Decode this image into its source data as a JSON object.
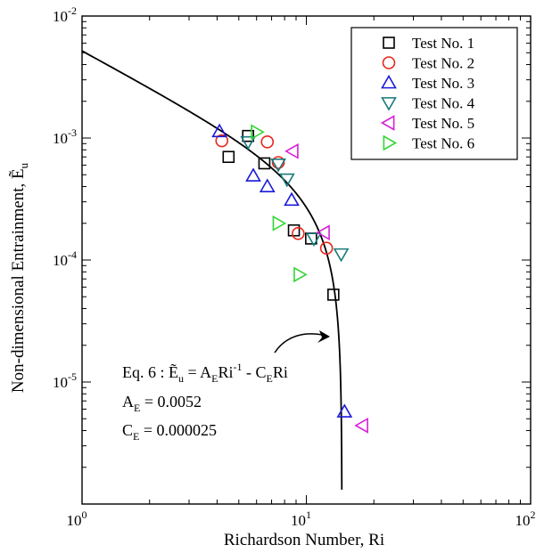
{
  "chart_data": {
    "type": "scatter",
    "xscale": "log",
    "yscale": "log",
    "xlim": [
      1,
      100
    ],
    "ylim": [
      1e-06,
      0.01
    ],
    "xlabel": "Richardson Number, Ri",
    "ylabel": "Non-dimensional Entrainment, Ẽu",
    "x_ticks": [
      {
        "value": 1,
        "base": "10",
        "exp": "0"
      },
      {
        "value": 10,
        "base": "10",
        "exp": "1"
      },
      {
        "value": 100,
        "base": "10",
        "exp": "2"
      }
    ],
    "y_ticks": [
      {
        "value": 1e-05,
        "base": "10",
        "exp": "-5"
      },
      {
        "value": 0.0001,
        "base": "10",
        "exp": "-4"
      },
      {
        "value": 0.001,
        "base": "10",
        "exp": "-3"
      },
      {
        "value": 0.01,
        "base": "10",
        "exp": "-2"
      }
    ],
    "grid": false,
    "legend_position": "top-right",
    "series": [
      {
        "name": "Test No. 1",
        "marker": "square",
        "color": "#000000",
        "points": [
          [
            5.5,
            0.00104
          ],
          [
            4.5,
            0.0007
          ],
          [
            6.5,
            0.00062
          ],
          [
            8.8,
            0.000175
          ],
          [
            10.5,
            0.00015
          ],
          [
            13.2,
            5.2e-05
          ]
        ]
      },
      {
        "name": "Test No. 2",
        "marker": "circle",
        "color": "#e8261c",
        "points": [
          [
            4.2,
            0.00095
          ],
          [
            6.7,
            0.00093
          ],
          [
            7.5,
            0.00063
          ],
          [
            9.2,
            0.000165
          ],
          [
            12.3,
            0.000125
          ]
        ]
      },
      {
        "name": "Test No. 3",
        "marker": "triangle-up",
        "color": "#1a1adb",
        "points": [
          [
            4.1,
            0.00113
          ],
          [
            5.8,
            0.00049
          ],
          [
            6.7,
            0.0004
          ],
          [
            8.6,
            0.00031
          ],
          [
            14.8,
            5.7e-06
          ]
        ]
      },
      {
        "name": "Test No. 4",
        "marker": "triangle-down",
        "color": "#1a7a7a",
        "points": [
          [
            5.5,
            0.00093
          ],
          [
            7.5,
            0.00061
          ],
          [
            8.2,
            0.00046
          ],
          [
            10.8,
            0.00015
          ],
          [
            14.3,
            0.000112
          ]
        ]
      },
      {
        "name": "Test No. 5",
        "marker": "triangle-left",
        "color": "#d81fd8",
        "points": [
          [
            8.7,
            0.00078
          ],
          [
            12.0,
            0.000168
          ],
          [
            17.8,
            4.4e-06
          ]
        ]
      },
      {
        "name": "Test No. 6",
        "marker": "triangle-right",
        "color": "#33d633",
        "points": [
          [
            6.0,
            0.00112
          ],
          [
            7.5,
            0.0002
          ],
          [
            9.3,
            7.6e-05
          ]
        ]
      }
    ],
    "curve": {
      "name": "Eq. 6",
      "formula": "Ẽu = A_E Ri^-1 - C_E Ri",
      "A_E": 0.0052,
      "C_E": 2.5e-05
    }
  },
  "annotation": {
    "eq_prefix": "Eq. 6 : Ẽ",
    "eq_sub_u": "u",
    "eq_eq": " = A",
    "eq_sub_E1": "E",
    "eq_ri": "Ri",
    "eq_sup": "-1",
    "eq_minus": " - C",
    "eq_sub_E2": "E",
    "eq_ri2": "Ri",
    "ae_label": "A",
    "ae_sub": "E",
    "ae_value": " = 0.0052",
    "ce_label": "C",
    "ce_sub": "E",
    "ce_value": " = 0.000025"
  },
  "ylabel_parts": {
    "main": "Non-dimensional Entrainment, Ẽ",
    "sub": "u"
  }
}
